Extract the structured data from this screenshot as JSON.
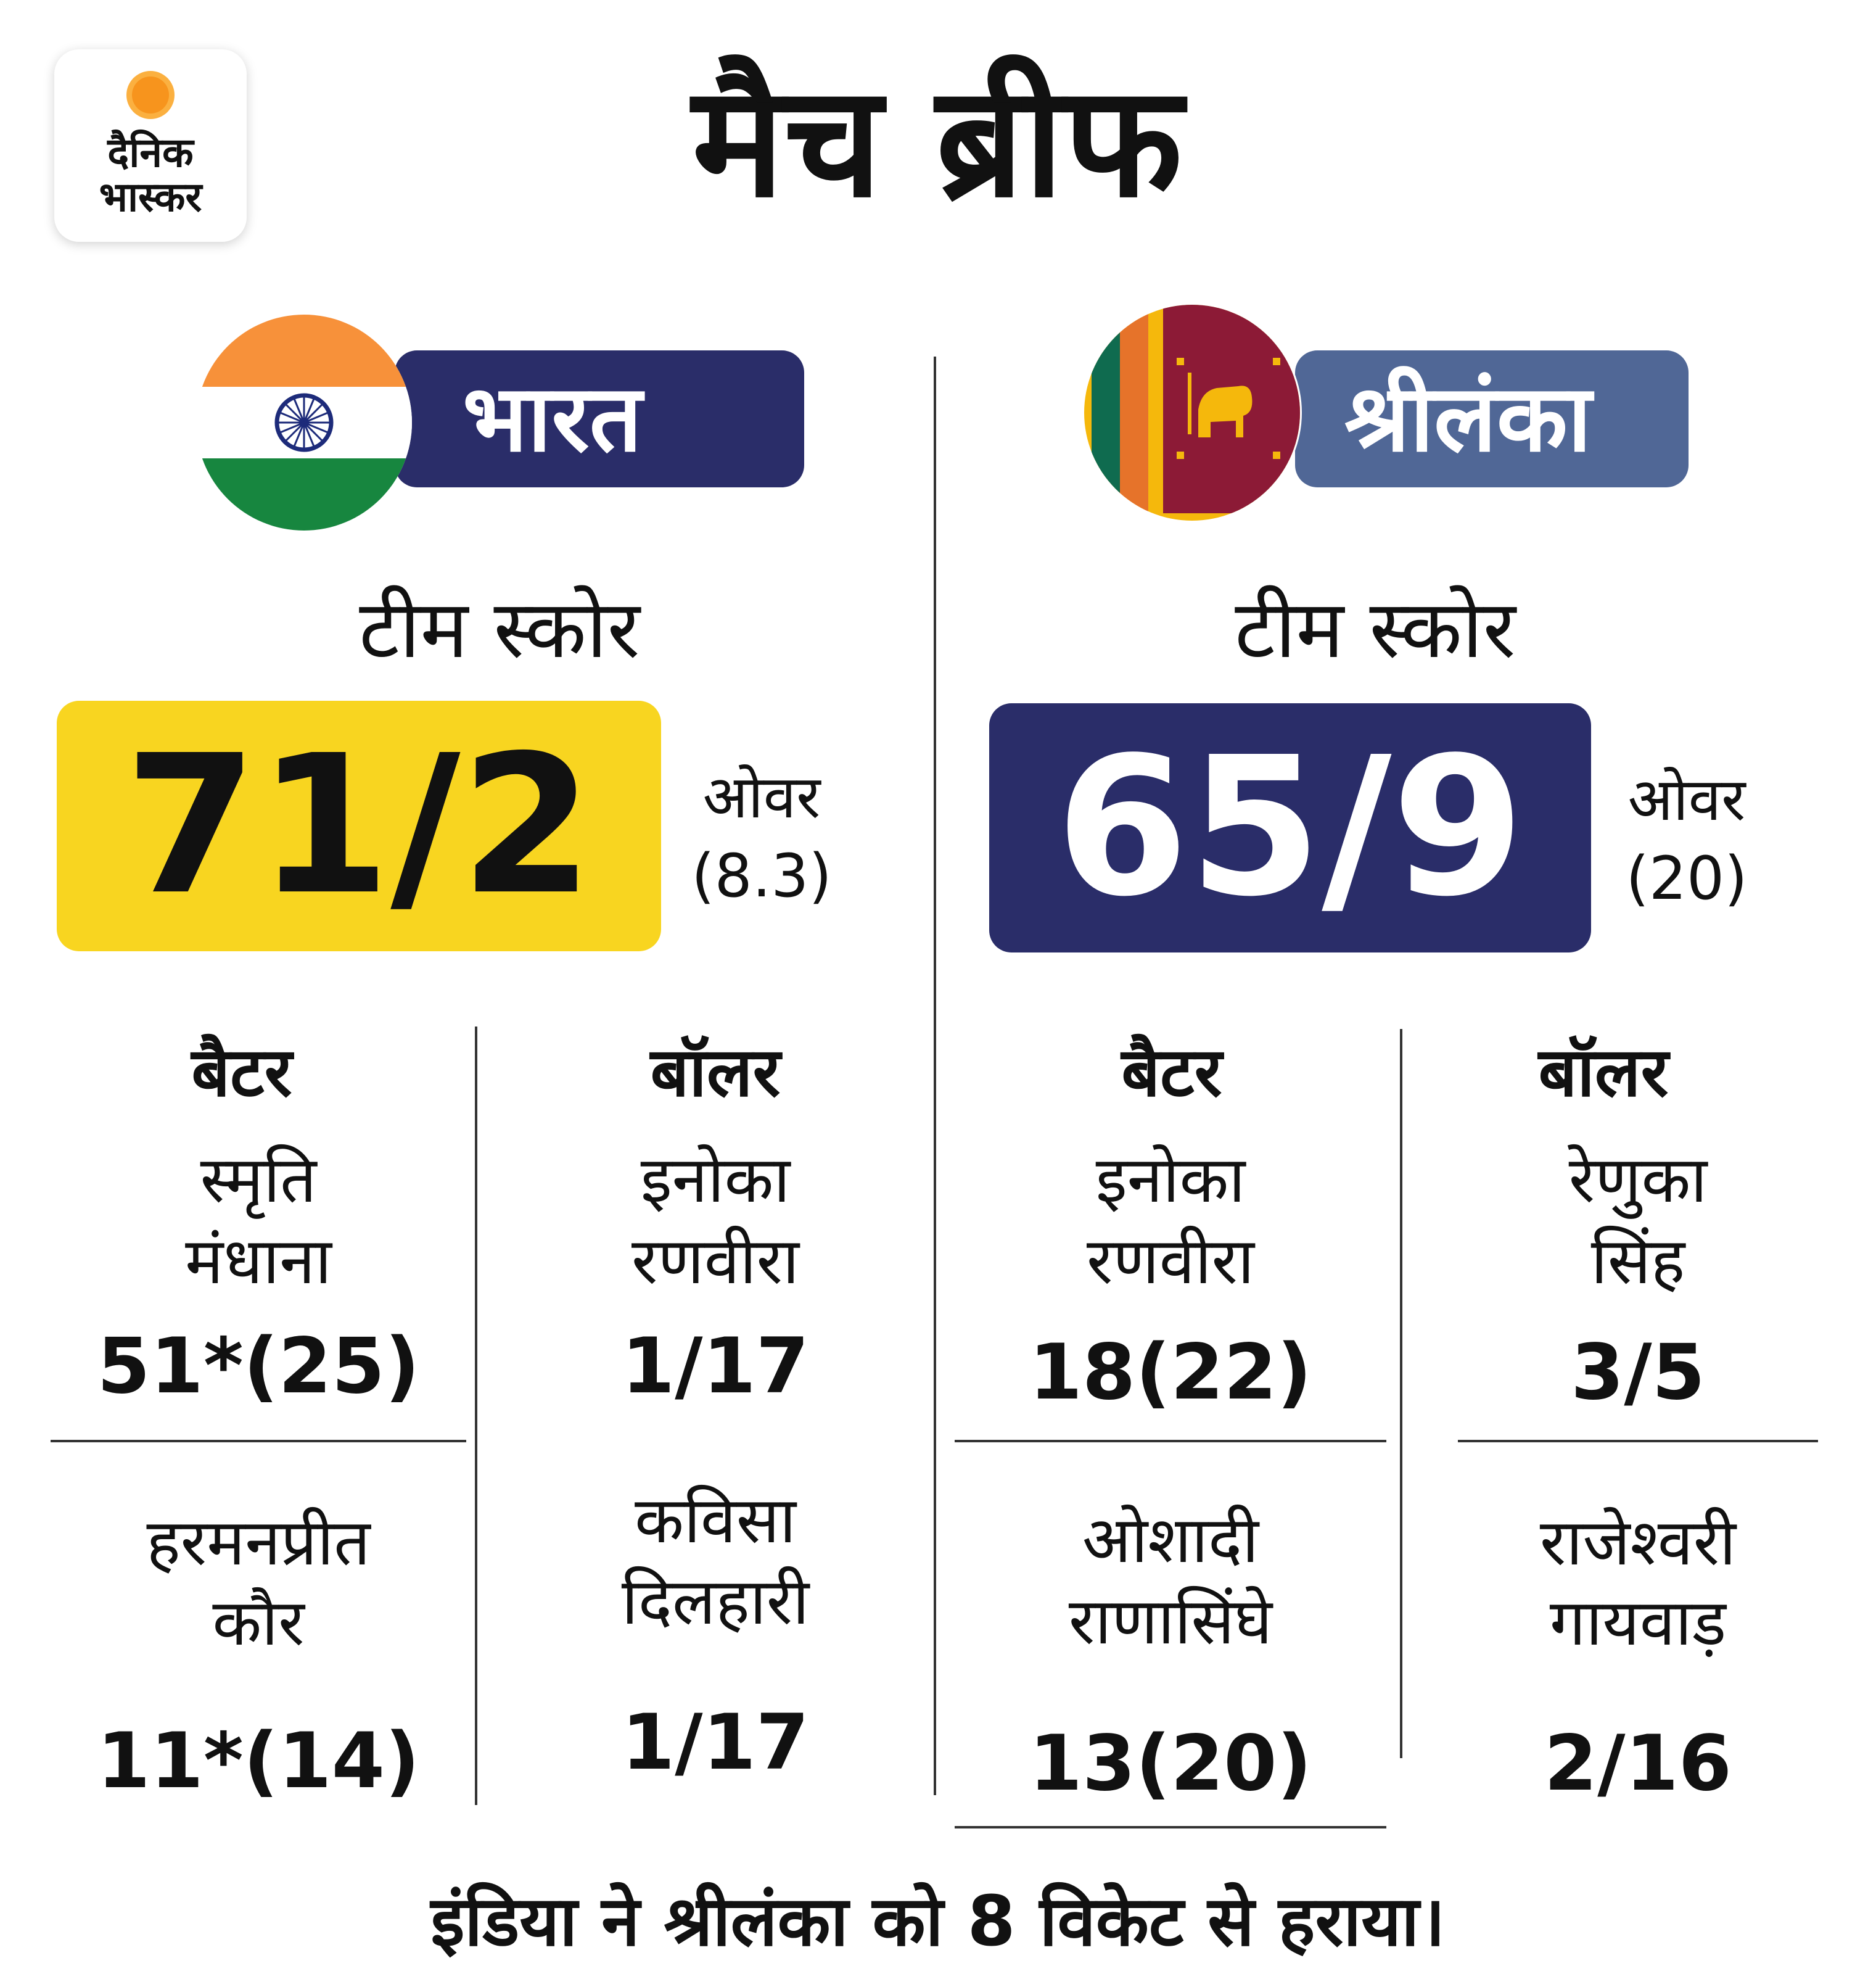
{
  "logo": {
    "line1": "दैनिक",
    "line2": "भास्कर"
  },
  "title": "मैच ब्रीफ",
  "teams": [
    {
      "name": "भारत",
      "score_label": "टीम स्कोर",
      "score": "71/2",
      "overs_label": "ओवर",
      "overs_value": "(8.3)",
      "batters_heading": "बैटर",
      "bowlers_heading": "बॉलर",
      "batters": [
        {
          "name1": "स्मृति",
          "name2": "मंधाना",
          "stat": "51*(25)"
        },
        {
          "name1": "हरमनप्रीत",
          "name2": "कौर",
          "stat": "11*(14)"
        }
      ],
      "bowlers": [
        {
          "name1": "इनोका",
          "name2": "रणवीरा",
          "stat": "1/17"
        },
        {
          "name1": "कविसा",
          "name2": "दिलहारी",
          "stat": "1/17"
        }
      ]
    },
    {
      "name": "श्रीलंका",
      "score_label": "टीम स्कोर",
      "score": "65/9",
      "overs_label": "ओवर",
      "overs_value": "(20)",
      "batters_heading": "बैटर",
      "bowlers_heading": "बॉलर",
      "batters": [
        {
          "name1": "इनोका",
          "name2": "रणवीरा",
          "stat": "18(22)"
        },
        {
          "name1": "ओशादी",
          "name2": "राणासिंघे",
          "stat": "13(20)"
        }
      ],
      "bowlers": [
        {
          "name1": "रेणुका",
          "name2": "सिंह",
          "stat": "3/5"
        },
        {
          "name1": "राजेश्वरी",
          "name2": "गायवाड़",
          "stat": "2/16"
        }
      ]
    }
  ],
  "result": "इंडिया ने श्रीलंका को 8 विकेट से हराया।",
  "colors": {
    "india_pill": "#2a2d69",
    "sri_lanka_pill": "#506796",
    "india_score_bg": "#f8d520",
    "sri_lanka_score_bg": "#2a2d69",
    "saffron": "#f7913a",
    "green": "#17863f",
    "chakra": "#1d2b7a",
    "sl_maroon": "#8c1a36",
    "sl_gold": "#f5b80c",
    "sl_orange": "#e6732a",
    "sl_teal": "#0f6b4f"
  }
}
